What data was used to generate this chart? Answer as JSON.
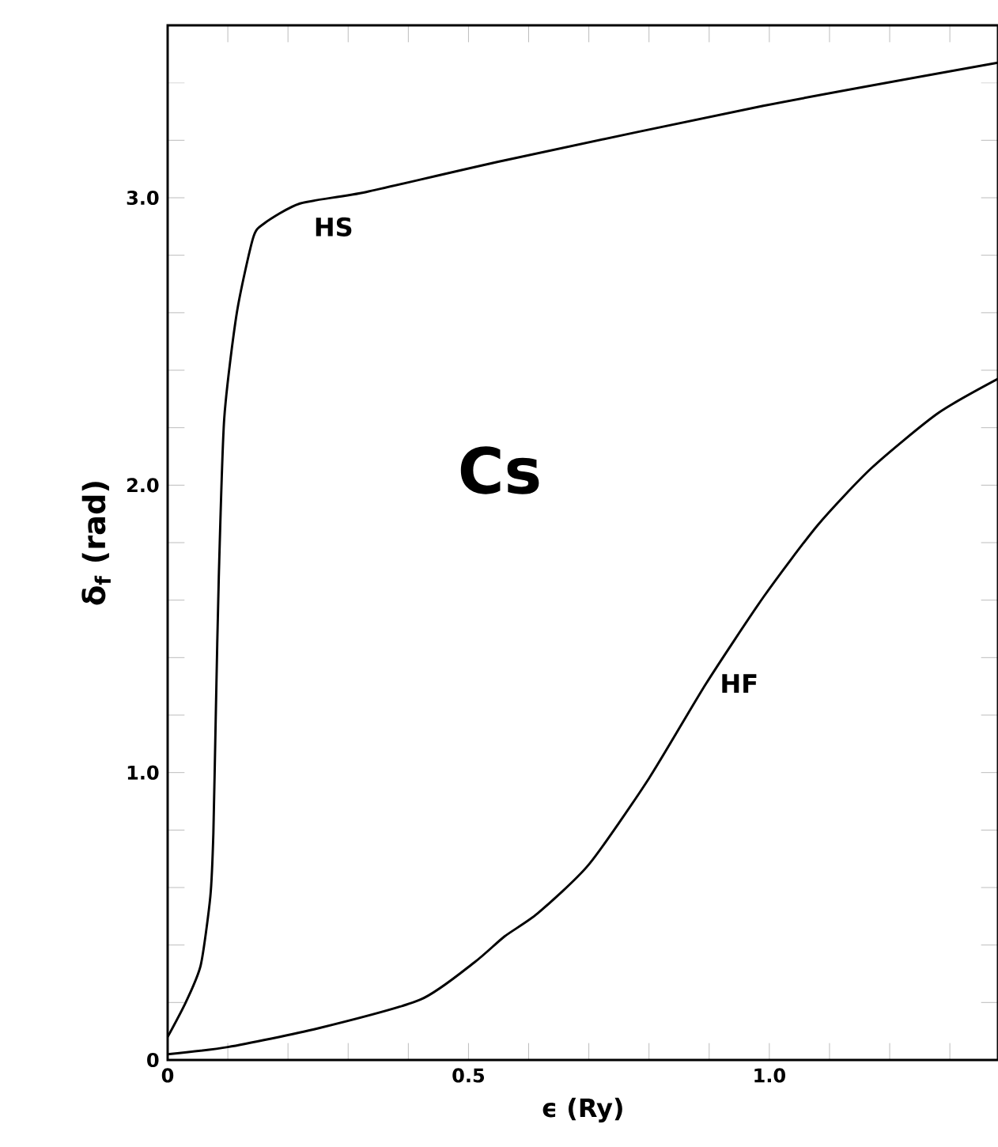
{
  "chart_data": {
    "type": "line",
    "xlabel": "ϵ (Ry)",
    "ylabel": "δ$_{f}$ (rad)",
    "annotations": [
      "Cs"
    ],
    "xlim": [
      0,
      1.38
    ],
    "ylim": [
      0,
      3.6
    ],
    "xticks": [
      0,
      {
        "value": 0.1,
        "label": null
      },
      {
        "value": 0.2,
        "label": null
      },
      {
        "value": 0.3,
        "label": null
      },
      {
        "value": 0.4,
        "label": null
      },
      0.5,
      {
        "value": 0.6,
        "label": null
      },
      {
        "value": 0.7,
        "label": null
      },
      {
        "value": 0.8,
        "label": null
      },
      {
        "value": 0.9,
        "label": null
      },
      {
        "value": 1.0,
        "label": "1.0"
      },
      {
        "value": 1.1,
        "label": null
      },
      {
        "value": 1.2,
        "label": null
      },
      {
        "value": 1.3,
        "label": null
      }
    ],
    "yticks": [
      0,
      {
        "value": 0.2,
        "label": null
      },
      {
        "value": 0.4,
        "label": null
      },
      {
        "value": 0.6,
        "label": null
      },
      {
        "value": 0.8,
        "label": null
      },
      {
        "value": 1.0,
        "label": "1.0"
      },
      {
        "value": 1.2,
        "label": null
      },
      {
        "value": 1.4,
        "label": null
      },
      {
        "value": 1.6,
        "label": null
      },
      {
        "value": 1.8,
        "label": null
      },
      {
        "value": 2.0,
        "label": "2.0"
      },
      {
        "value": 2.2,
        "label": null
      },
      {
        "value": 2.4,
        "label": null
      },
      {
        "value": 2.6,
        "label": null
      },
      {
        "value": 2.8,
        "label": null
      },
      {
        "value": 3.0,
        "label": "3.0"
      },
      {
        "value": 3.2,
        "label": null
      },
      {
        "value": 3.4,
        "label": null
      }
    ],
    "series": [
      {
        "name": "HS",
        "color": "#000000",
        "x": [
          0,
          0.03,
          0.055,
          0.071,
          0.076,
          0.08,
          0.085,
          0.094,
          0.115,
          0.142,
          0.16,
          0.22,
          0.33,
          0.56,
          0.99,
          1.38
        ],
        "values": [
          0.08,
          0.2,
          0.33,
          0.57,
          0.79,
          1.2,
          1.68,
          2.23,
          2.6,
          2.86,
          2.91,
          2.98,
          3.02,
          3.13,
          3.32,
          3.47
        ]
      },
      {
        "name": "HF",
        "color": "#000000",
        "x": [
          0,
          0.1,
          0.25,
          0.42,
          0.51,
          0.56,
          0.615,
          0.7,
          0.8,
          0.895,
          0.99,
          1.08,
          1.17,
          1.28,
          1.38
        ],
        "values": [
          0.02,
          0.045,
          0.11,
          0.21,
          0.34,
          0.43,
          0.51,
          0.68,
          0.98,
          1.31,
          1.61,
          1.86,
          2.06,
          2.25,
          2.37
        ]
      }
    ]
  }
}
